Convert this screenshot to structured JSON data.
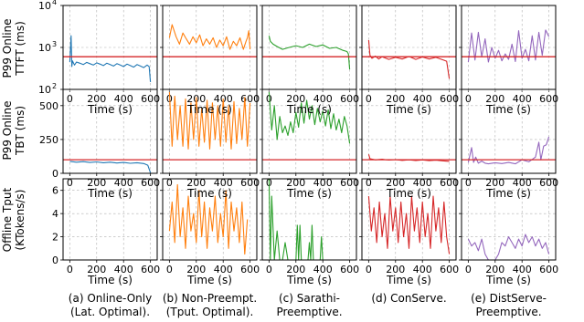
{
  "figure": {
    "colors": {
      "online_only": "#1f77b4",
      "non_preempt": "#ff7f0e",
      "sarathi": "#2ca02c",
      "conserve": "#d62728",
      "distserve": "#9467bd",
      "slo_line": "#d62728"
    },
    "xlabel": "Time (s)",
    "x_ticks": [
      0,
      200,
      400,
      600
    ],
    "captions": [
      [
        "(a) Online-Only",
        "(Lat. Optimal)."
      ],
      [
        "(b) Non-Preempt.",
        "(Tput. Optimal)."
      ],
      [
        "(c) Sarathi-",
        "Preemptive."
      ],
      [
        "(d) ConServe.",
        ""
      ],
      [
        "(e) DistServe-",
        "Preemptive."
      ]
    ],
    "row_labels": [
      [
        "P99 Online",
        "TTFT (ms)"
      ],
      [
        "P99 Online",
        "TBT (ms)"
      ],
      [
        "Offline Tput",
        "(KTokens/s)"
      ]
    ]
  },
  "chart_data": [
    {
      "type": "line",
      "row": "ttft",
      "ylabel": "P99 Online TTFT (ms)",
      "yscale": "log",
      "ylim": [
        100,
        10000
      ],
      "y_ticks": [
        100,
        1000,
        10000
      ],
      "y_tick_labels": [
        {
          "base": "10",
          "exp": "2"
        },
        {
          "base": "10",
          "exp": "3"
        },
        {
          "base": "10",
          "exp": "4"
        }
      ],
      "xlim": [
        -50,
        650
      ],
      "slo": 600,
      "panels": [
        {
          "system": "online_only",
          "x": [
            0,
            10,
            15,
            20,
            35,
            50,
            75,
            100,
            125,
            150,
            175,
            200,
            225,
            250,
            275,
            300,
            325,
            350,
            375,
            400,
            425,
            450,
            475,
            500,
            525,
            550,
            575,
            590,
            600
          ],
          "y": [
            450,
            1900,
            350,
            480,
            380,
            450,
            420,
            390,
            440,
            410,
            380,
            430,
            400,
            370,
            420,
            390,
            360,
            410,
            380,
            350,
            400,
            370,
            340,
            390,
            360,
            330,
            380,
            350,
            150
          ]
        },
        {
          "system": "non_preempt",
          "x": [
            0,
            20,
            50,
            75,
            100,
            125,
            150,
            175,
            200,
            225,
            250,
            275,
            300,
            325,
            350,
            375,
            400,
            425,
            450,
            475,
            500,
            525,
            550,
            570,
            580,
            590,
            600
          ],
          "y": [
            1700,
            3500,
            1800,
            1200,
            2200,
            1600,
            1200,
            1800,
            1300,
            2000,
            1100,
            1600,
            1200,
            1700,
            1000,
            1500,
            1100,
            1800,
            900,
            1400,
            1100,
            1700,
            900,
            1400,
            1700,
            2500,
            900
          ]
        },
        {
          "system": "sarathi",
          "x": [
            0,
            10,
            30,
            60,
            100,
            150,
            200,
            250,
            300,
            350,
            400,
            450,
            500,
            550,
            580,
            590,
            600
          ],
          "y": [
            1900,
            1400,
            1200,
            1050,
            900,
            1000,
            1100,
            1000,
            1200,
            1050,
            1150,
            950,
            1000,
            850,
            800,
            700,
            300
          ]
        },
        {
          "system": "conserve",
          "x": [
            0,
            10,
            25,
            50,
            75,
            100,
            150,
            200,
            250,
            300,
            350,
            400,
            450,
            500,
            550,
            580,
            600
          ],
          "y": [
            1500,
            650,
            550,
            620,
            530,
            600,
            520,
            580,
            530,
            610,
            520,
            590,
            530,
            580,
            510,
            470,
            180
          ]
        },
        {
          "system": "distserve",
          "x": [
            0,
            25,
            50,
            75,
            100,
            125,
            150,
            175,
            200,
            225,
            250,
            275,
            300,
            325,
            350,
            375,
            400,
            425,
            450,
            475,
            500,
            525,
            550,
            575,
            600
          ],
          "y": [
            450,
            2200,
            500,
            2300,
            600,
            1600,
            450,
            1000,
            550,
            850,
            480,
            700,
            520,
            1200,
            460,
            2500,
            550,
            900,
            480,
            1900,
            500,
            2300,
            650,
            2600,
            1800
          ]
        }
      ]
    },
    {
      "type": "line",
      "row": "tbt",
      "ylabel": "P99 Online TBT (ms)",
      "yscale": "linear",
      "ylim": [
        0,
        620
      ],
      "y_ticks": [
        0,
        250,
        500
      ],
      "xlim": [
        -50,
        650
      ],
      "slo": 100,
      "panels": [
        {
          "system": "online_only",
          "x": [
            0,
            50,
            100,
            150,
            200,
            250,
            300,
            350,
            400,
            450,
            500,
            550,
            580,
            600
          ],
          "y": [
            88,
            82,
            86,
            80,
            84,
            78,
            82,
            76,
            80,
            74,
            78,
            72,
            60,
            5
          ]
        },
        {
          "system": "non_preempt",
          "x": [
            0,
            20,
            40,
            60,
            80,
            100,
            120,
            140,
            160,
            180,
            200,
            220,
            240,
            260,
            280,
            300,
            320,
            340,
            360,
            380,
            400,
            420,
            440,
            460,
            480,
            500,
            520,
            540,
            560,
            580,
            600
          ],
          "y": [
            600,
            200,
            570,
            250,
            500,
            200,
            550,
            180,
            520,
            250,
            560,
            200,
            480,
            230,
            540,
            180,
            520,
            250,
            500,
            200,
            550,
            230,
            500,
            180,
            530,
            220,
            480,
            250,
            560,
            200,
            520
          ]
        },
        {
          "system": "sarathi",
          "x": [
            0,
            20,
            40,
            60,
            80,
            100,
            120,
            140,
            160,
            180,
            200,
            220,
            240,
            260,
            280,
            300,
            320,
            340,
            360,
            380,
            400,
            420,
            440,
            460,
            480,
            500,
            520,
            540,
            560,
            580,
            600
          ],
          "y": [
            600,
            320,
            500,
            250,
            420,
            300,
            350,
            280,
            380,
            300,
            450,
            340,
            520,
            370,
            540,
            400,
            500,
            360,
            480,
            380,
            460,
            350,
            470,
            330,
            440,
            320,
            400,
            300,
            420,
            350,
            220
          ]
        },
        {
          "system": "conserve",
          "x": [
            0,
            10,
            50,
            100,
            150,
            200,
            250,
            300,
            350,
            400,
            450,
            500,
            550,
            600
          ],
          "y": [
            140,
            108,
            100,
            104,
            98,
            102,
            96,
            100,
            95,
            99,
            94,
            97,
            92,
            88
          ]
        },
        {
          "system": "distserve",
          "x": [
            0,
            25,
            40,
            55,
            75,
            100,
            125,
            150,
            200,
            250,
            300,
            350,
            400,
            450,
            500,
            525,
            540,
            560,
            580,
            600
          ],
          "y": [
            80,
            190,
            80,
            120,
            75,
            90,
            75,
            70,
            78,
            72,
            80,
            70,
            100,
            85,
            120,
            230,
            100,
            200,
            210,
            270
          ]
        }
      ]
    },
    {
      "type": "line",
      "row": "tput",
      "ylabel": "Offline Tput (KTokens/s)",
      "yscale": "linear",
      "ylim": [
        0,
        7
      ],
      "y_ticks": [
        0,
        2,
        4,
        6
      ],
      "xlim": [
        -50,
        650
      ],
      "panels": [
        {
          "system": "online_only",
          "x": [
            0,
            600
          ],
          "y": [
            0,
            0
          ]
        },
        {
          "system": "non_preempt",
          "x": [
            0,
            20,
            40,
            60,
            80,
            100,
            120,
            140,
            160,
            180,
            200,
            220,
            240,
            260,
            280,
            300,
            320,
            340,
            360,
            380,
            400,
            420,
            440,
            460,
            480,
            500,
            520,
            540,
            560,
            580
          ],
          "y": [
            2.5,
            5.0,
            1.5,
            6.5,
            2.0,
            4.5,
            1.0,
            5.5,
            2.5,
            4.0,
            1.5,
            6.0,
            2.0,
            5.0,
            1.0,
            4.5,
            2.5,
            5.5,
            1.5,
            4.0,
            2.0,
            6.0,
            1.0,
            5.0,
            2.5,
            4.5,
            1.5,
            5.0,
            0.5,
            3.5
          ]
        },
        {
          "system": "sarathi",
          "x": [
            0,
            10,
            20,
            40,
            60,
            80,
            100,
            120,
            140,
            200,
            210,
            220,
            230,
            240,
            290,
            300,
            310,
            320,
            330,
            380,
            390,
            400
          ],
          "y": [
            7.0,
            0.0,
            5.5,
            0.0,
            2.5,
            0.0,
            0.0,
            1.5,
            0.0,
            0.0,
            3.0,
            0.0,
            3.0,
            0.0,
            0.0,
            1.5,
            0.0,
            3.0,
            0.0,
            0.0,
            2.0,
            0.0
          ]
        },
        {
          "system": "conserve",
          "x": [
            0,
            20,
            40,
            60,
            80,
            100,
            120,
            140,
            160,
            180,
            200,
            220,
            240,
            260,
            280,
            300,
            320,
            340,
            360,
            380,
            400,
            420,
            440,
            460,
            480,
            500,
            520,
            540,
            560,
            580,
            600
          ],
          "y": [
            5.5,
            2.5,
            4.5,
            1.5,
            5.0,
            2.0,
            4.0,
            1.0,
            5.5,
            2.5,
            4.5,
            1.5,
            5.0,
            2.0,
            4.0,
            1.0,
            5.5,
            2.5,
            4.5,
            1.5,
            5.0,
            2.0,
            4.0,
            1.0,
            5.5,
            2.5,
            4.5,
            1.5,
            5.0,
            2.0,
            0.5
          ]
        },
        {
          "system": "distserve",
          "x": [
            0,
            25,
            50,
            75,
            100,
            125,
            150,
            175,
            200,
            225,
            250,
            275,
            300,
            325,
            350,
            375,
            400,
            425,
            450,
            475,
            500,
            525,
            550,
            575,
            600
          ],
          "y": [
            1.8,
            1.2,
            1.5,
            0.8,
            1.8,
            0.5,
            0.0,
            0.0,
            0.0,
            0.5,
            1.5,
            1.2,
            2.0,
            1.5,
            1.0,
            1.8,
            1.2,
            2.2,
            1.5,
            2.0,
            1.2,
            1.8,
            1.0,
            1.5,
            0.5
          ]
        }
      ]
    }
  ]
}
